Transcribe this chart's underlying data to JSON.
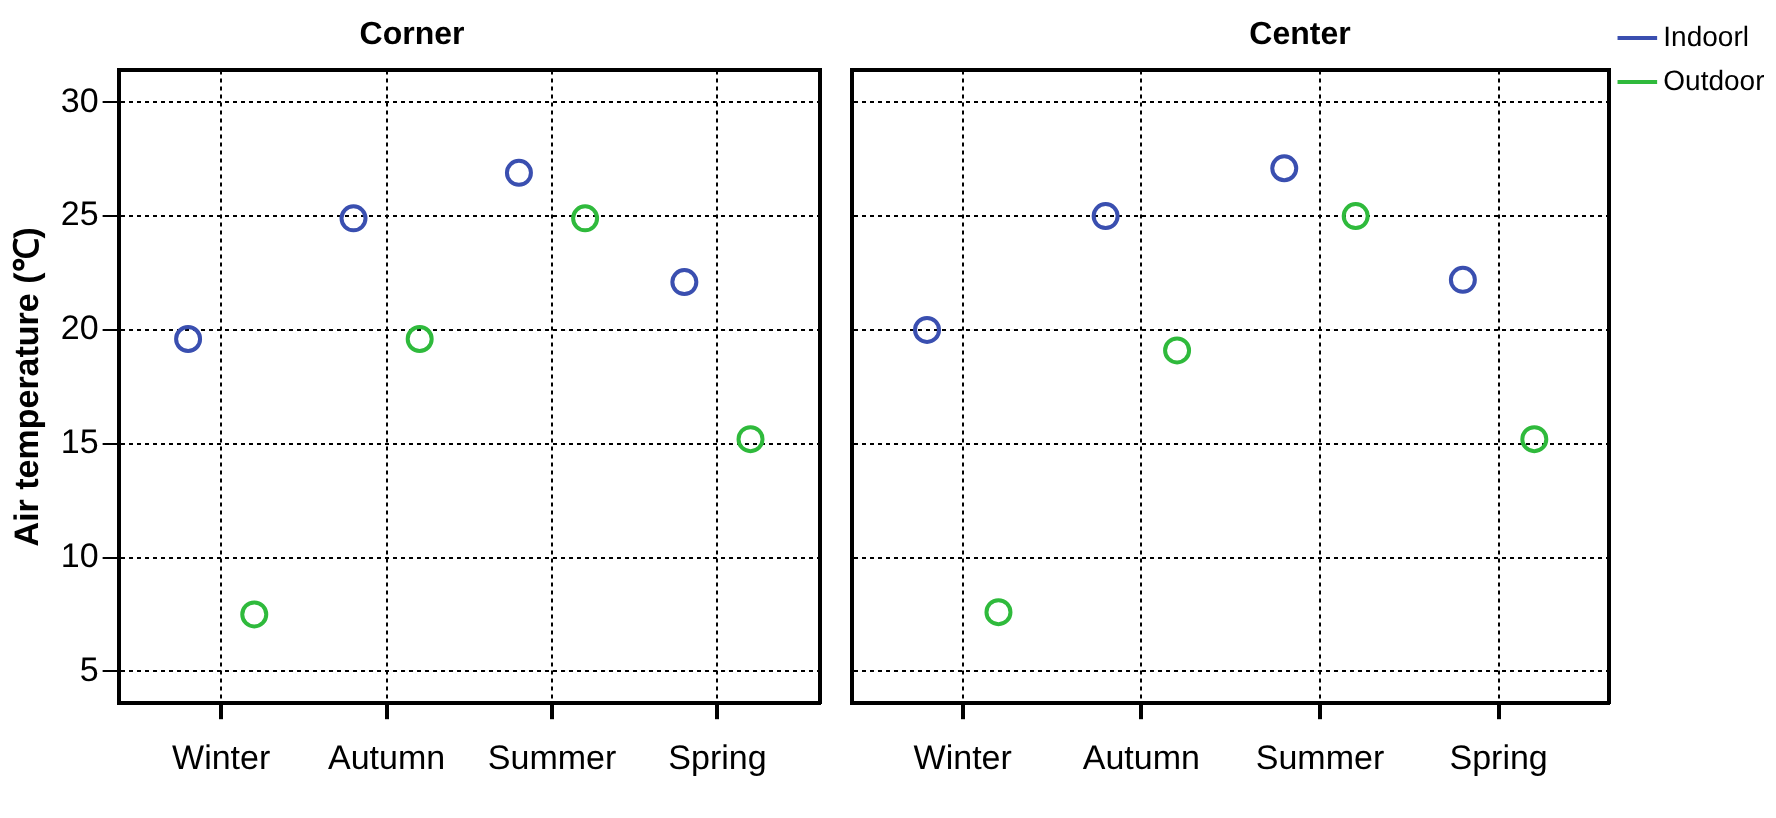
{
  "chart_data": [
    {
      "type": "scatter",
      "title": "Corner",
      "ylabel": "Air temperature (℃)",
      "categories": [
        "Winter",
        "Autumn",
        "Summer",
        "Spring"
      ],
      "series": [
        {
          "color": "#3a4fb0",
          "values": [
            19.6,
            24.9,
            26.9,
            22.1
          ]
        },
        {
          "color": "#2fba3c",
          "values": [
            7.5,
            19.6,
            24.9,
            15.2
          ]
        }
      ],
      "ylim": [
        3.6,
        31.4
      ],
      "yticks": [
        5,
        10,
        15,
        20,
        25,
        30
      ],
      "grid": true,
      "marker": "circle",
      "legend": false
    },
    {
      "type": "scatter",
      "title": "Center",
      "categories": [
        "Winter",
        "Autumn",
        "Summer",
        "Spring"
      ],
      "series": [
        {
          "name": "Indoorl",
          "color": "#3a4fb0",
          "values": [
            20.0,
            25.0,
            27.1,
            22.2
          ]
        },
        {
          "name": "Outdoor",
          "color": "#2fba3c",
          "values": [
            7.6,
            19.1,
            25.0,
            15.2
          ]
        }
      ],
      "ylim": [
        3.6,
        31.4
      ],
      "yticks": [
        5,
        10,
        15,
        20,
        25,
        30
      ],
      "grid": true,
      "marker": "circle",
      "legend": "top right",
      "tick_labels": "x"
    }
  ]
}
